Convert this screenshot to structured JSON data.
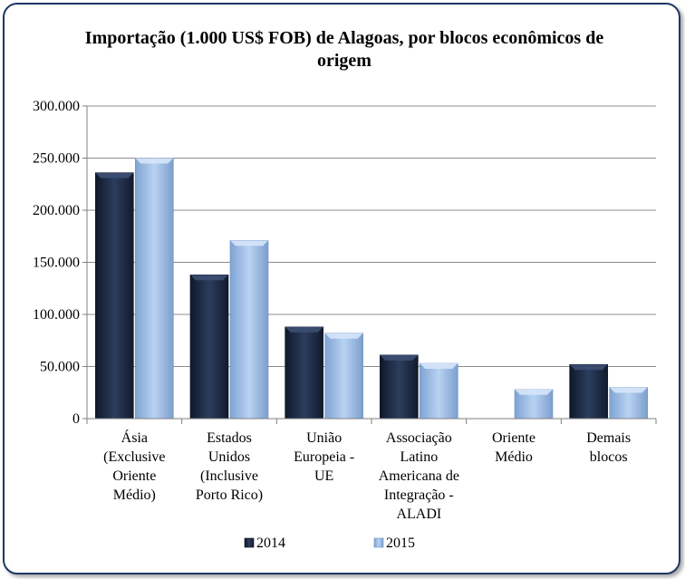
{
  "chart_data": {
    "type": "bar",
    "title": "Importação (1.000 US$  FOB) de Alagoas, por blocos econômicos de origem",
    "categories": [
      [
        "Ásia",
        "(Exclusive",
        "Oriente",
        "Médio)"
      ],
      [
        "Estados",
        "Unidos",
        "(Inclusive",
        "Porto Rico)"
      ],
      [
        "União",
        "Europeia -",
        "UE"
      ],
      [
        "Associação",
        "Latino",
        "Americana de",
        "Integração -",
        "ALADI"
      ],
      [
        "Oriente",
        "Médio"
      ],
      [
        "Demais",
        "blocos"
      ]
    ],
    "series": [
      {
        "name": "2014",
        "values": [
          236000,
          138000,
          88000,
          61000,
          0,
          52000
        ],
        "color": "#1c2a44"
      },
      {
        "name": "2015",
        "values": [
          250000,
          171000,
          82000,
          53000,
          28000,
          30000
        ],
        "color": "#9bbde6"
      }
    ],
    "yticks": [
      "0",
      "50.000",
      "100.000",
      "150.000",
      "200.000",
      "250.000",
      "300.000"
    ],
    "ylim": [
      0,
      300000
    ],
    "grid": true,
    "legend_position": "bottom"
  }
}
